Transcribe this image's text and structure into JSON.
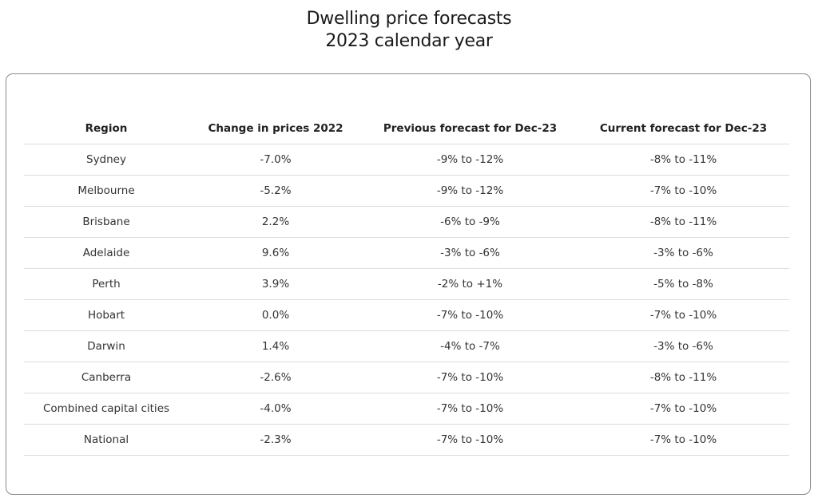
{
  "header": {
    "title_line1": "Dwelling price forecasts",
    "title_line2": "2023 calendar year"
  },
  "chart_data": {
    "type": "table",
    "title": "Dwelling price forecasts 2023 calendar year",
    "columns": [
      "Region",
      "Change in prices 2022",
      "Previous forecast for Dec-23",
      "Current forecast for Dec-23"
    ],
    "rows": [
      [
        "Sydney",
        "-7.0%",
        "-9% to -12%",
        "-8% to -11%"
      ],
      [
        "Melbourne",
        "-5.2%",
        "-9% to -12%",
        "-7% to -10%"
      ],
      [
        "Brisbane",
        "2.2%",
        "-6% to -9%",
        "-8% to -11%"
      ],
      [
        "Adelaide",
        "9.6%",
        "-3% to -6%",
        "-3% to -6%"
      ],
      [
        "Perth",
        "3.9%",
        "-2% to +1%",
        "-5% to -8%"
      ],
      [
        "Hobart",
        "0.0%",
        "-7% to -10%",
        "-7% to -10%"
      ],
      [
        "Darwin",
        "1.4%",
        "-4% to -7%",
        "-3% to -6%"
      ],
      [
        "Canberra",
        "-2.6%",
        "-7% to -10%",
        "-8% to -11%"
      ],
      [
        "Combined capital cities",
        "-4.0%",
        "-7% to -10%",
        "-7% to -10%"
      ],
      [
        "National",
        "-2.3%",
        "-7% to -10%",
        "-7% to -10%"
      ]
    ]
  }
}
